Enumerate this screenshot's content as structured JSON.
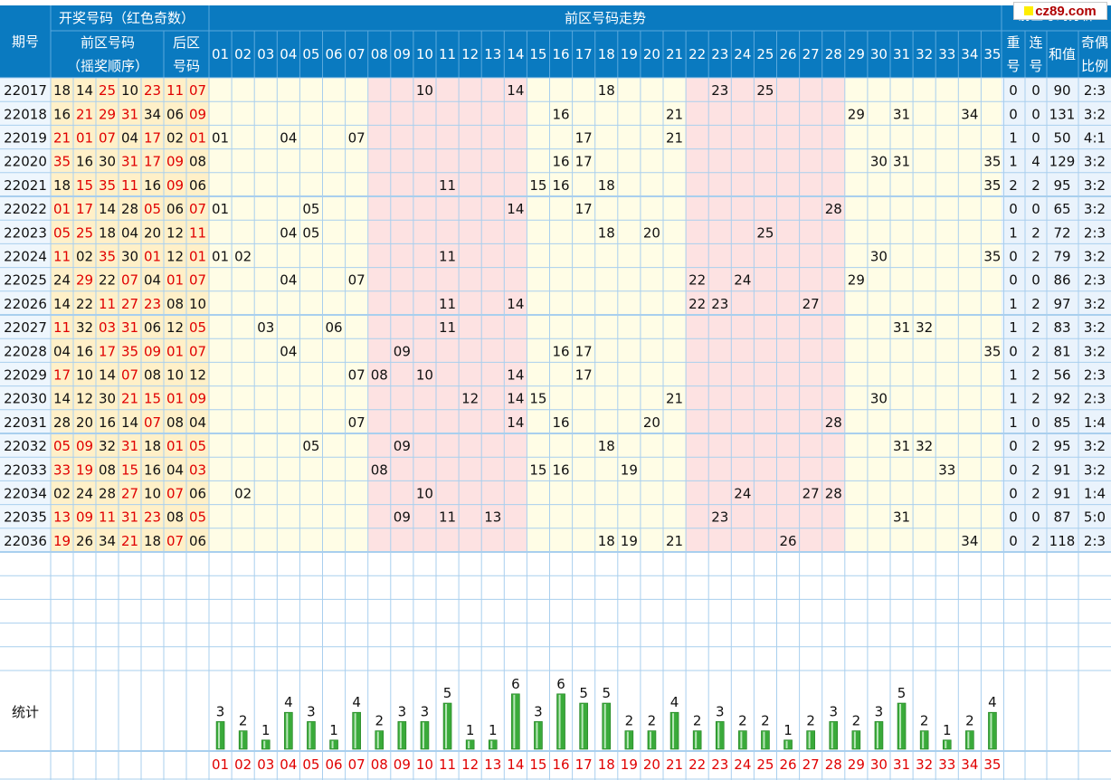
{
  "header": {
    "period": "期号",
    "draw_group": "开奖号码（红色奇数）",
    "front_numbers": "前区号码",
    "front_order": "（摇奖顺序）",
    "back_line1": "后区",
    "back_line2": "号码",
    "trend": "前区号码走势",
    "analysis": "前区号码分析",
    "repeat_l1": "重",
    "repeat_l2": "号",
    "consec_l1": "连",
    "consec_l2": "号",
    "sum": "和值",
    "ratio_l1": "奇偶",
    "ratio_l2": "比例"
  },
  "watermark": "cz89.com",
  "stats_label": "统计",
  "colors": {
    "header_bg": "#0a7ac0",
    "header_text": "#ffffff",
    "number_band": "#fff0c8",
    "trend_band_light": "#fffde6",
    "trend_band_pink": "#fde2e2",
    "analysis_bg": "#eaf3fc",
    "odd_red": "#e00000",
    "bar_green": "#3aaa3a",
    "grid": "#a9cfee"
  },
  "chart_data": {
    "type": "table",
    "columns_front": [
      "01",
      "02",
      "03",
      "04",
      "05",
      "06",
      "07",
      "08",
      "09",
      "10",
      "11",
      "12",
      "13",
      "14",
      "15",
      "16",
      "17",
      "18",
      "19",
      "20",
      "21",
      "22",
      "23",
      "24",
      "25",
      "26",
      "27",
      "28",
      "29",
      "30",
      "31",
      "32",
      "33",
      "34",
      "35"
    ],
    "draws": [
      {
        "period": "22017",
        "front": [
          "18",
          "14",
          "25",
          "10",
          "23"
        ],
        "back": [
          "11",
          "07"
        ],
        "repeat": "0",
        "consecutive": "0",
        "sum": "90",
        "ratio": "2:3"
      },
      {
        "period": "22018",
        "front": [
          "16",
          "21",
          "29",
          "31",
          "34"
        ],
        "back": [
          "06",
          "09"
        ],
        "repeat": "0",
        "consecutive": "0",
        "sum": "131",
        "ratio": "3:2"
      },
      {
        "period": "22019",
        "front": [
          "21",
          "01",
          "07",
          "04",
          "17"
        ],
        "back": [
          "02",
          "01"
        ],
        "repeat": "1",
        "consecutive": "0",
        "sum": "50",
        "ratio": "4:1"
      },
      {
        "period": "22020",
        "front": [
          "35",
          "16",
          "30",
          "31",
          "17"
        ],
        "back": [
          "09",
          "08"
        ],
        "repeat": "1",
        "consecutive": "4",
        "sum": "129",
        "ratio": "3:2"
      },
      {
        "period": "22021",
        "front": [
          "18",
          "15",
          "35",
          "11",
          "16"
        ],
        "back": [
          "09",
          "06"
        ],
        "repeat": "2",
        "consecutive": "2",
        "sum": "95",
        "ratio": "3:2"
      },
      {
        "period": "22022",
        "front": [
          "01",
          "17",
          "14",
          "28",
          "05"
        ],
        "back": [
          "06",
          "07"
        ],
        "repeat": "0",
        "consecutive": "0",
        "sum": "65",
        "ratio": "3:2"
      },
      {
        "period": "22023",
        "front": [
          "05",
          "25",
          "18",
          "04",
          "20"
        ],
        "back": [
          "12",
          "11"
        ],
        "repeat": "1",
        "consecutive": "2",
        "sum": "72",
        "ratio": "2:3"
      },
      {
        "period": "22024",
        "front": [
          "11",
          "02",
          "35",
          "30",
          "01"
        ],
        "back": [
          "12",
          "01"
        ],
        "repeat": "0",
        "consecutive": "2",
        "sum": "79",
        "ratio": "3:2"
      },
      {
        "period": "22025",
        "front": [
          "24",
          "29",
          "22",
          "07",
          "04"
        ],
        "back": [
          "01",
          "07"
        ],
        "repeat": "0",
        "consecutive": "0",
        "sum": "86",
        "ratio": "2:3"
      },
      {
        "period": "22026",
        "front": [
          "14",
          "22",
          "11",
          "27",
          "23"
        ],
        "back": [
          "08",
          "10"
        ],
        "repeat": "1",
        "consecutive": "2",
        "sum": "97",
        "ratio": "3:2"
      },
      {
        "period": "22027",
        "front": [
          "11",
          "32",
          "03",
          "31",
          "06"
        ],
        "back": [
          "12",
          "05"
        ],
        "repeat": "1",
        "consecutive": "2",
        "sum": "83",
        "ratio": "3:2"
      },
      {
        "period": "22028",
        "front": [
          "04",
          "16",
          "17",
          "35",
          "09"
        ],
        "back": [
          "01",
          "07"
        ],
        "repeat": "0",
        "consecutive": "2",
        "sum": "81",
        "ratio": "3:2"
      },
      {
        "period": "22029",
        "front": [
          "17",
          "10",
          "14",
          "07",
          "08"
        ],
        "back": [
          "10",
          "12"
        ],
        "repeat": "1",
        "consecutive": "2",
        "sum": "56",
        "ratio": "2:3"
      },
      {
        "period": "22030",
        "front": [
          "14",
          "12",
          "30",
          "21",
          "15"
        ],
        "back": [
          "01",
          "09"
        ],
        "repeat": "1",
        "consecutive": "2",
        "sum": "92",
        "ratio": "2:3"
      },
      {
        "period": "22031",
        "front": [
          "28",
          "20",
          "16",
          "14",
          "07"
        ],
        "back": [
          "08",
          "04"
        ],
        "repeat": "1",
        "consecutive": "0",
        "sum": "85",
        "ratio": "1:4"
      },
      {
        "period": "22032",
        "front": [
          "05",
          "09",
          "32",
          "31",
          "18"
        ],
        "back": [
          "01",
          "05"
        ],
        "repeat": "0",
        "consecutive": "2",
        "sum": "95",
        "ratio": "3:2"
      },
      {
        "period": "22033",
        "front": [
          "33",
          "19",
          "08",
          "15",
          "16"
        ],
        "back": [
          "04",
          "03"
        ],
        "repeat": "0",
        "consecutive": "2",
        "sum": "91",
        "ratio": "3:2"
      },
      {
        "period": "22034",
        "front": [
          "02",
          "24",
          "28",
          "27",
          "10"
        ],
        "back": [
          "07",
          "06"
        ],
        "repeat": "0",
        "consecutive": "2",
        "sum": "91",
        "ratio": "1:4"
      },
      {
        "period": "22035",
        "front": [
          "13",
          "09",
          "11",
          "31",
          "23"
        ],
        "back": [
          "08",
          "05"
        ],
        "repeat": "0",
        "consecutive": "0",
        "sum": "87",
        "ratio": "5:0"
      },
      {
        "period": "22036",
        "front": [
          "19",
          "26",
          "34",
          "21",
          "18"
        ],
        "back": [
          "07",
          "06"
        ],
        "repeat": "0",
        "consecutive": "2",
        "sum": "118",
        "ratio": "2:3"
      }
    ],
    "frequency": [
      3,
      2,
      1,
      4,
      3,
      1,
      4,
      2,
      3,
      3,
      5,
      1,
      1,
      6,
      3,
      6,
      5,
      5,
      2,
      2,
      4,
      2,
      3,
      2,
      2,
      1,
      2,
      3,
      2,
      3,
      5,
      2,
      1,
      2,
      4
    ]
  }
}
